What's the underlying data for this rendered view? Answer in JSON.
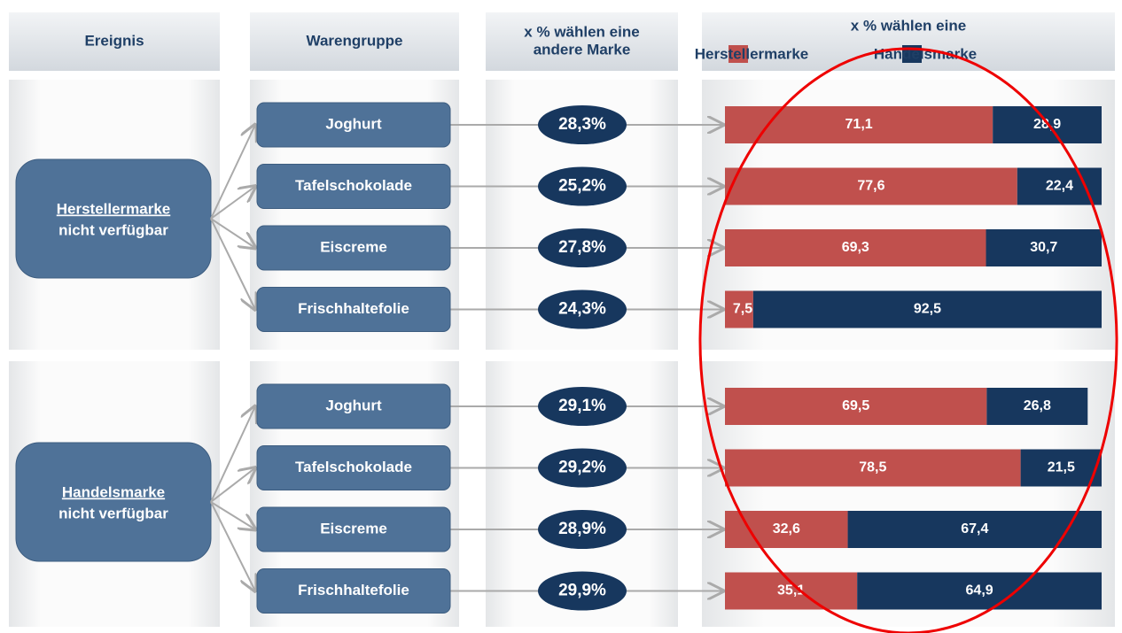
{
  "headers": [
    [
      "Ereignis"
    ],
    [
      "Warengruppe"
    ],
    [
      "x % wählen eine",
      "andere Marke"
    ],
    [
      "x % wählen eine"
    ]
  ],
  "legend": [
    {
      "name": "Herstellermarke",
      "color": "#c0504d"
    },
    {
      "name": "Handelsmarke",
      "color": "#17375e"
    }
  ],
  "groups": [
    {
      "event": [
        "Herstellermarke",
        "nicht verfügbar"
      ],
      "rows": [
        {
          "category": "Joghurt",
          "switch": {
            "value": 28.3,
            "label": "28,3%"
          },
          "values": [
            71.1,
            28.9
          ],
          "value_labels": [
            "71,1",
            "28,9"
          ]
        },
        {
          "category": "Tafelschokolade",
          "switch": {
            "value": 25.2,
            "label": "25,2%"
          },
          "values": [
            77.6,
            22.4
          ],
          "value_labels": [
            "77,6",
            "22,4"
          ]
        },
        {
          "category": "Eiscreme",
          "switch": {
            "value": 27.8,
            "label": "27,8%"
          },
          "values": [
            69.3,
            30.7
          ],
          "value_labels": [
            "69,3",
            "30,7"
          ]
        },
        {
          "category": "Frischhaltefolie",
          "switch": {
            "value": 24.3,
            "label": "24,3%"
          },
          "values": [
            7.5,
            92.5
          ],
          "value_labels": [
            "7,5",
            "92,5"
          ]
        }
      ]
    },
    {
      "event": [
        "Handelsmarke",
        "nicht verfügbar"
      ],
      "rows": [
        {
          "category": "Joghurt",
          "switch": {
            "value": 29.1,
            "label": "29,1%"
          },
          "values": [
            69.5,
            26.8
          ],
          "value_labels": [
            "69,5",
            "26,8"
          ]
        },
        {
          "category": "Tafelschokolade",
          "switch": {
            "value": 29.2,
            "label": "29,2%"
          },
          "values": [
            78.5,
            21.5
          ],
          "value_labels": [
            "78,5",
            "21,5"
          ]
        },
        {
          "category": "Eiscreme",
          "switch": {
            "value": 28.9,
            "label": "28,9%"
          },
          "values": [
            32.6,
            67.4
          ],
          "value_labels": [
            "32,6",
            "67,4"
          ]
        },
        {
          "category": "Frischhaltefolie",
          "switch": {
            "value": 29.9,
            "label": "29,9%"
          },
          "values": [
            35.1,
            64.9
          ],
          "value_labels": [
            "35,1",
            "64,9"
          ]
        }
      ]
    }
  ]
}
